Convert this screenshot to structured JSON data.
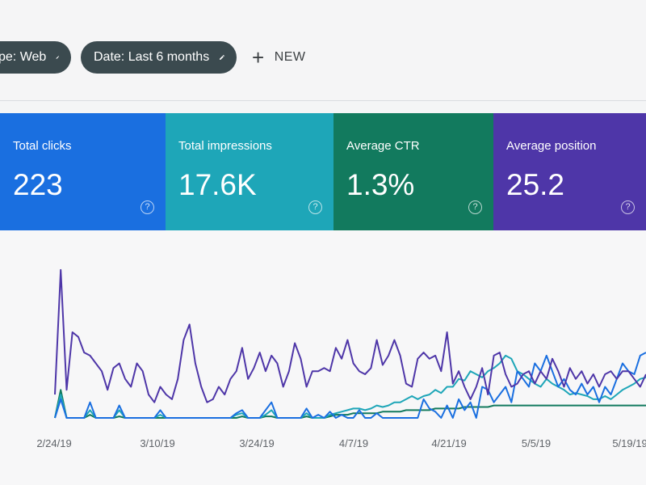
{
  "filters": {
    "type_chip": "pe: Web",
    "date_chip": "Date: Last 6 months",
    "new_label": "NEW"
  },
  "cards": [
    {
      "label": "Total clicks",
      "value": "223",
      "color": "#1a6fe0"
    },
    {
      "label": "Total impressions",
      "value": "17.6K",
      "color": "#1ea6b8"
    },
    {
      "label": "Average CTR",
      "value": "1.3%",
      "color": "#127a5e"
    },
    {
      "label": "Average position",
      "value": "25.2",
      "color": "#4e36a8"
    }
  ],
  "chart_data": {
    "type": "line",
    "x_tick_labels": [
      "2/24/19",
      "3/10/19",
      "3/24/19",
      "4/7/19",
      "4/21/19",
      "5/5/19",
      "5/19/19"
    ],
    "grid": false,
    "series": [
      {
        "color": "#4e36a8",
        "values": [
          15,
          95,
          18,
          55,
          52,
          42,
          40,
          35,
          30,
          18,
          32,
          35,
          25,
          20,
          35,
          30,
          15,
          10,
          20,
          15,
          12,
          25,
          50,
          60,
          35,
          20,
          10,
          12,
          20,
          15,
          25,
          30,
          45,
          25,
          32,
          42,
          30,
          40,
          35,
          20,
          30,
          48,
          38,
          20,
          30,
          30,
          32,
          30,
          45,
          38,
          50,
          35,
          30,
          28,
          32,
          50,
          34,
          40,
          50,
          40,
          22,
          20,
          38,
          42,
          38,
          40,
          30,
          55,
          22,
          30,
          20,
          12,
          20,
          32,
          15,
          40,
          42,
          28,
          20,
          22,
          28,
          30,
          22,
          30,
          25,
          38,
          30,
          20,
          32,
          25,
          30,
          22,
          28,
          20,
          28,
          30,
          25,
          30,
          30,
          25,
          20,
          28
        ]
      },
      {
        "color": "#1a6fe0",
        "values": [
          0,
          12,
          0,
          0,
          0,
          0,
          10,
          0,
          0,
          0,
          0,
          8,
          0,
          0,
          0,
          0,
          0,
          0,
          5,
          0,
          0,
          0,
          0,
          0,
          0,
          0,
          0,
          0,
          0,
          0,
          0,
          3,
          5,
          0,
          0,
          0,
          5,
          10,
          0,
          0,
          0,
          0,
          0,
          6,
          0,
          2,
          0,
          4,
          0,
          2,
          0,
          0,
          5,
          0,
          0,
          3,
          0,
          0,
          0,
          0,
          0,
          0,
          0,
          12,
          6,
          4,
          0,
          8,
          0,
          12,
          5,
          10,
          0,
          20,
          18,
          10,
          15,
          20,
          10,
          30,
          25,
          20,
          35,
          30,
          40,
          30,
          20,
          25,
          18,
          15,
          22,
          15,
          20,
          10,
          20,
          15,
          25,
          35,
          30,
          28,
          40,
          42
        ]
      },
      {
        "color": "#1ea6b8",
        "values": [
          0,
          15,
          0,
          0,
          0,
          0,
          5,
          0,
          0,
          0,
          0,
          5,
          0,
          0,
          0,
          0,
          0,
          0,
          2,
          0,
          0,
          0,
          0,
          0,
          0,
          0,
          0,
          0,
          0,
          0,
          0,
          2,
          3,
          0,
          0,
          0,
          2,
          5,
          0,
          0,
          0,
          0,
          0,
          3,
          0,
          0,
          0,
          2,
          3,
          4,
          5,
          6,
          6,
          5,
          6,
          8,
          7,
          8,
          10,
          10,
          12,
          14,
          12,
          14,
          15,
          18,
          16,
          20,
          20,
          25,
          24,
          30,
          28,
          26,
          30,
          32,
          35,
          40,
          38,
          30,
          28,
          25,
          22,
          20,
          25,
          22,
          20,
          18,
          15,
          16,
          15,
          14,
          12,
          12,
          14,
          12,
          15,
          18,
          20,
          22,
          25,
          26
        ]
      },
      {
        "color": "#127a5e",
        "values": [
          0,
          18,
          0,
          0,
          0,
          0,
          2,
          0,
          0,
          0,
          0,
          1,
          0,
          0,
          0,
          0,
          0,
          0,
          0,
          0,
          0,
          0,
          0,
          0,
          0,
          0,
          0,
          0,
          0,
          0,
          0,
          0,
          1,
          0,
          0,
          0,
          1,
          1,
          0,
          0,
          0,
          0,
          0,
          1,
          0,
          0,
          0,
          1,
          2,
          2,
          2,
          3,
          3,
          3,
          3,
          3,
          4,
          4,
          4,
          4,
          5,
          5,
          5,
          5,
          5,
          6,
          6,
          6,
          6,
          6,
          7,
          7,
          7,
          7,
          7,
          8,
          8,
          8,
          8,
          8,
          8,
          8,
          8,
          8,
          8,
          8,
          8,
          8,
          8,
          8,
          8,
          8,
          8,
          8,
          8,
          8,
          8,
          8,
          8,
          8,
          8,
          8
        ]
      }
    ],
    "ylim": [
      0,
      110
    ]
  }
}
